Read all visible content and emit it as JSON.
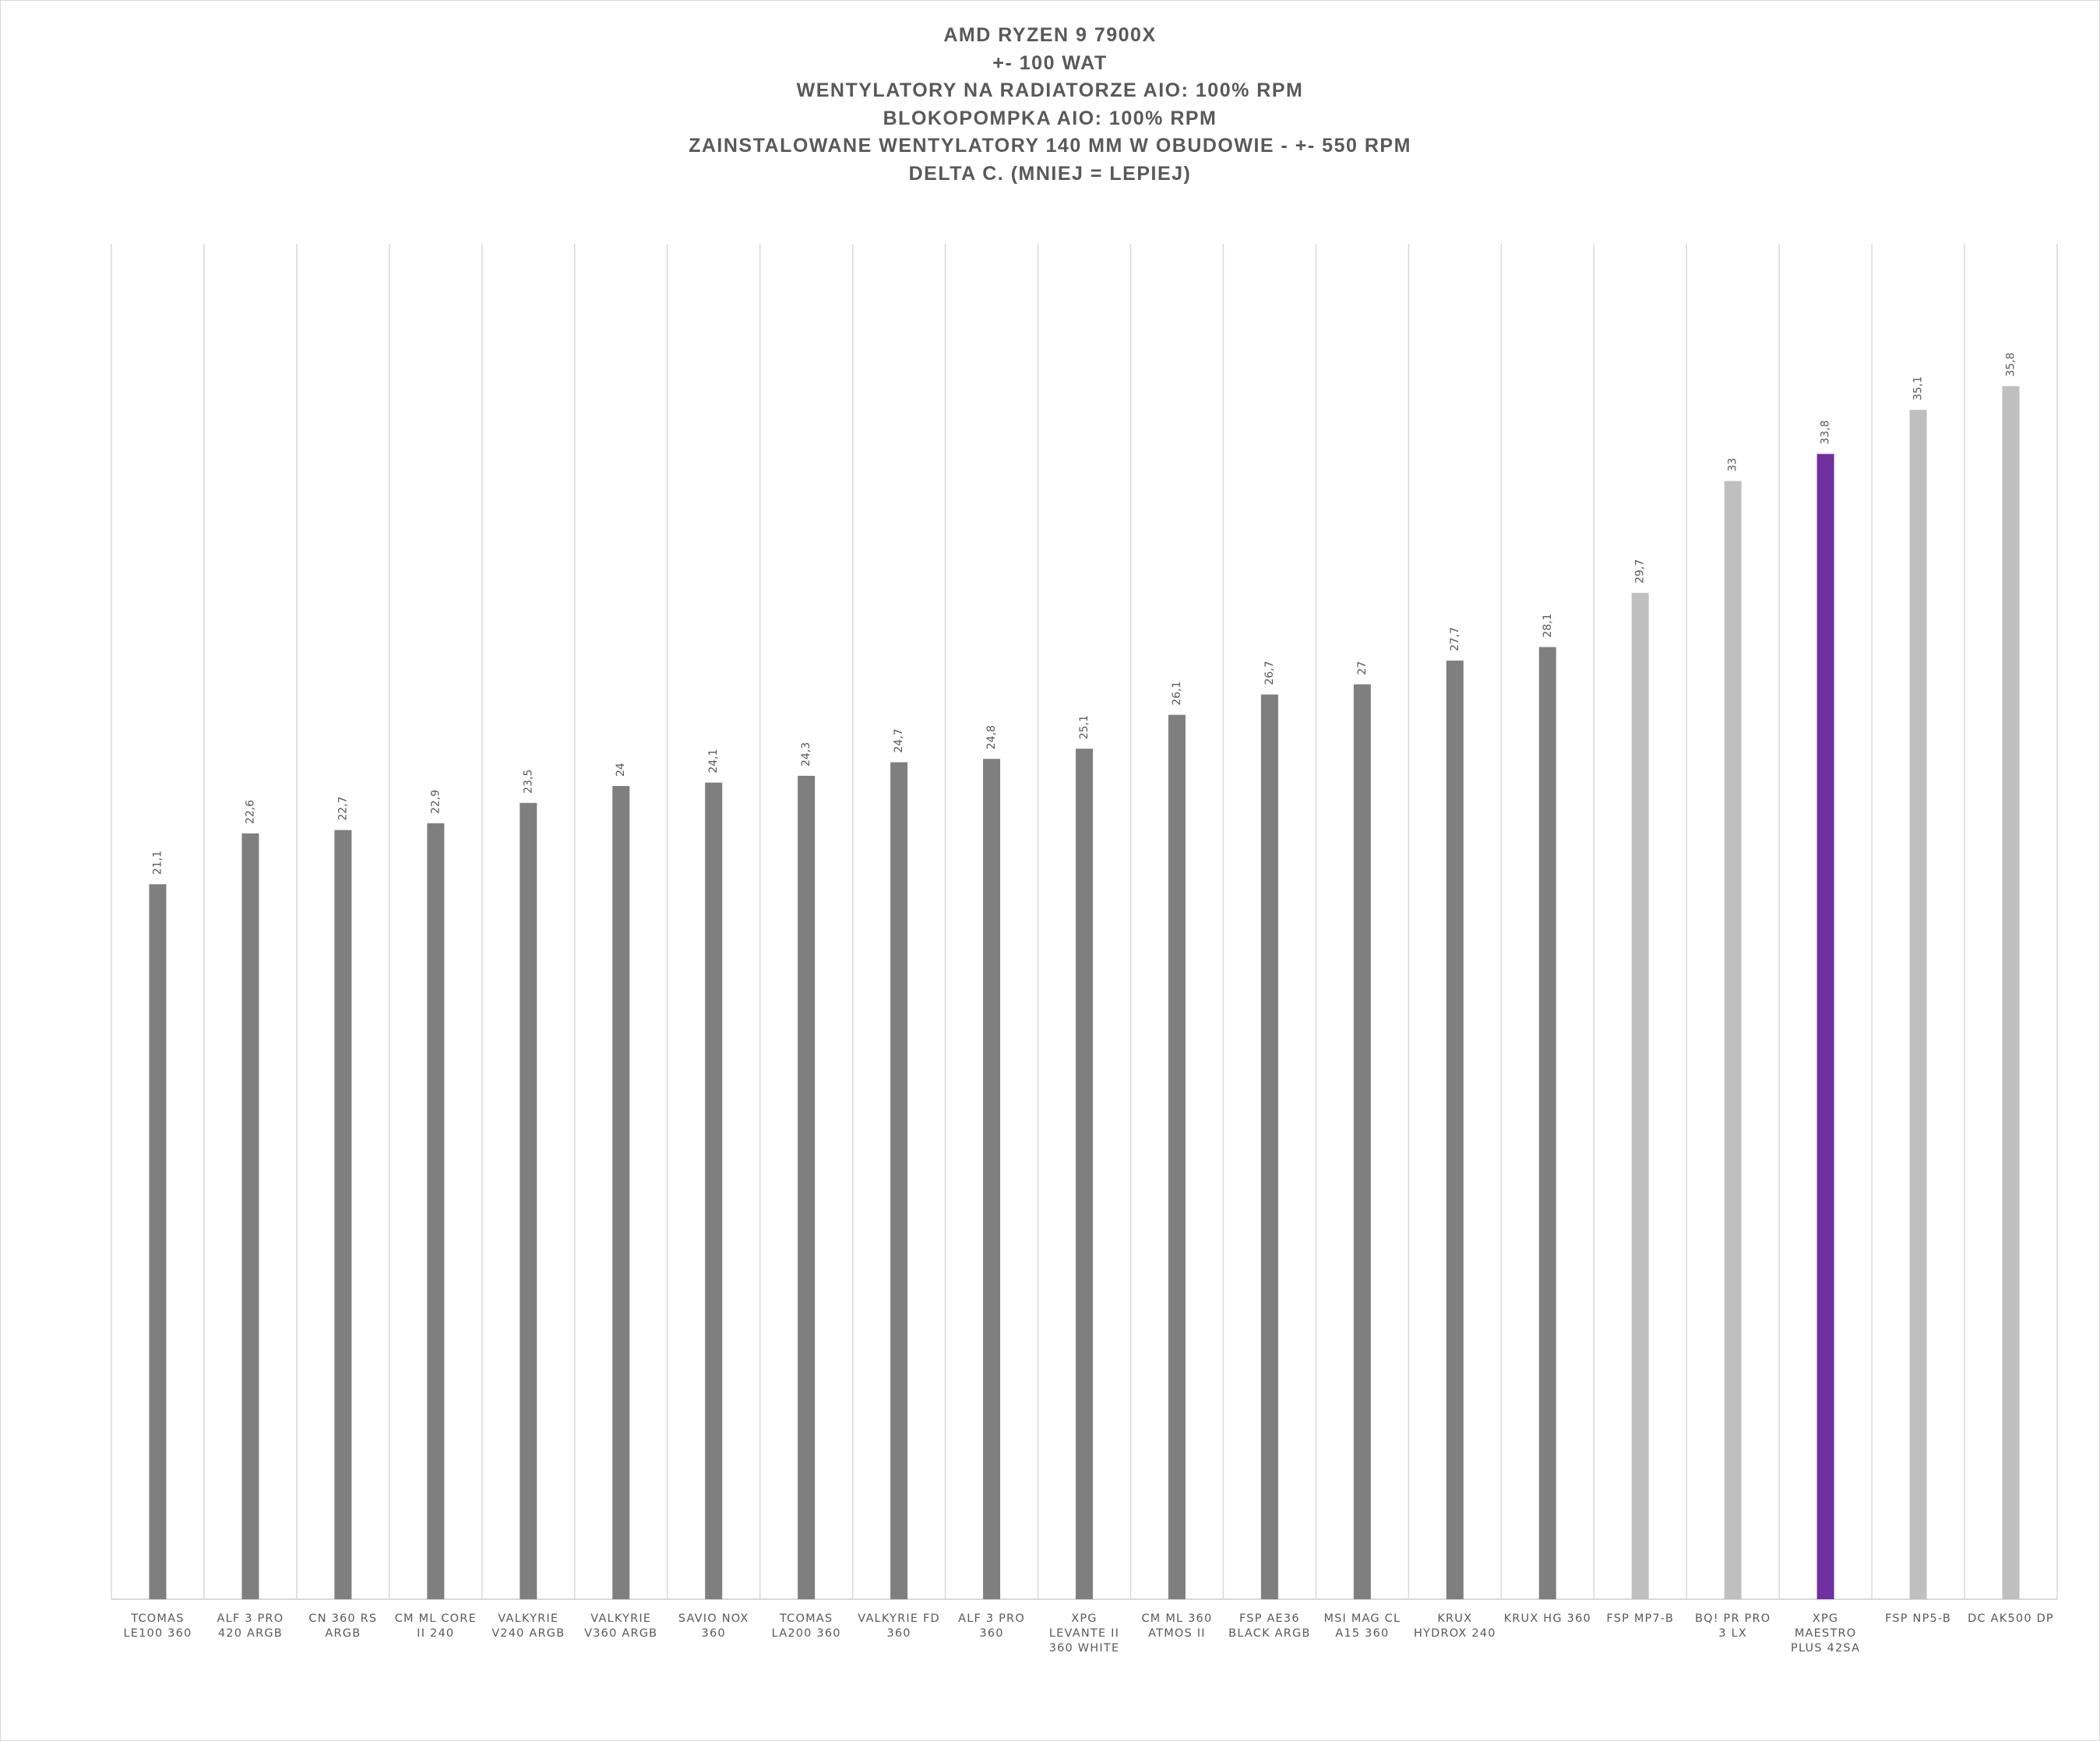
{
  "chart_data": {
    "type": "bar",
    "title_lines": [
      "AMD RYZEN 9 7900X",
      "+- 100 WAT",
      "WENTYLATORY NA RADIATORZE AIO: 100% RPM",
      "BLOKOPOMPKA AIO: 100% RPM",
      "ZAINSTALOWANE WENTYLATORY 140 MM W OBUDOWIE - +- 550 RPM",
      "DELTA C. (MNIEJ = LEPIEJ)"
    ],
    "categories": [
      [
        "TCOMAS",
        "LE100 360"
      ],
      [
        "ALF 3 PRO",
        "420 ARGB"
      ],
      [
        "CN 360 RS",
        "ARGB"
      ],
      [
        "CM ML CORE",
        "II 240"
      ],
      [
        "VALKYRIE",
        "V240 ARGB"
      ],
      [
        "VALKYRIE",
        "V360 ARGB"
      ],
      [
        "SAVIO NOX",
        "360"
      ],
      [
        "TCOMAS",
        "LA200 360"
      ],
      [
        "VALKYRIE FD",
        "360"
      ],
      [
        "ALF 3 PRO",
        "360"
      ],
      [
        "XPG",
        "LEVANTE II",
        "360 WHITE"
      ],
      [
        "CM ML 360",
        "ATMOS II"
      ],
      [
        "FSP AE36",
        "BLACK ARGB"
      ],
      [
        "MSI MAG CL",
        "A15 360"
      ],
      [
        "KRUX",
        "HYDROX  240"
      ],
      [
        "KRUX HG 360"
      ],
      [
        "FSP MP7-B"
      ],
      [
        "BQ! PR PRO",
        "3 LX"
      ],
      [
        "XPG",
        "MAESTRO",
        "PLUS 42SA"
      ],
      [
        "FSP NP5-B"
      ],
      [
        "DC AK500 DP"
      ]
    ],
    "values": [
      21.1,
      22.6,
      22.7,
      22.9,
      23.5,
      24,
      24.1,
      24.3,
      24.7,
      24.8,
      25.1,
      26.1,
      26.7,
      27,
      27.7,
      28.1,
      29.7,
      33,
      33.8,
      35.1,
      35.8
    ],
    "value_labels": [
      "21,1",
      "22,6",
      "22,7",
      "22,9",
      "23,5",
      "24",
      "24,1",
      "24,3",
      "24,7",
      "24,8",
      "25,1",
      "26,1",
      "26,7",
      "27",
      "27,7",
      "28,1",
      "29,7",
      "33",
      "33,8",
      "35,1",
      "35,8"
    ],
    "bar_colors": [
      "#7f7f7f",
      "#7f7f7f",
      "#7f7f7f",
      "#7f7f7f",
      "#7f7f7f",
      "#7f7f7f",
      "#7f7f7f",
      "#7f7f7f",
      "#7f7f7f",
      "#7f7f7f",
      "#7f7f7f",
      "#7f7f7f",
      "#7f7f7f",
      "#7f7f7f",
      "#7f7f7f",
      "#7f7f7f",
      "#bfbfbf",
      "#bfbfbf",
      "#7030a0",
      "#bfbfbf",
      "#bfbfbf"
    ],
    "ylim": [
      0,
      40
    ],
    "y_axis_visible": false,
    "gridlines": "vertical",
    "legend": "none",
    "colors": {
      "default_bar": "#7f7f7f",
      "competitor_bar": "#bfbfbf",
      "highlight_bar": "#7030a0",
      "gridline": "#d9d9d9",
      "text": "#595959"
    }
  }
}
